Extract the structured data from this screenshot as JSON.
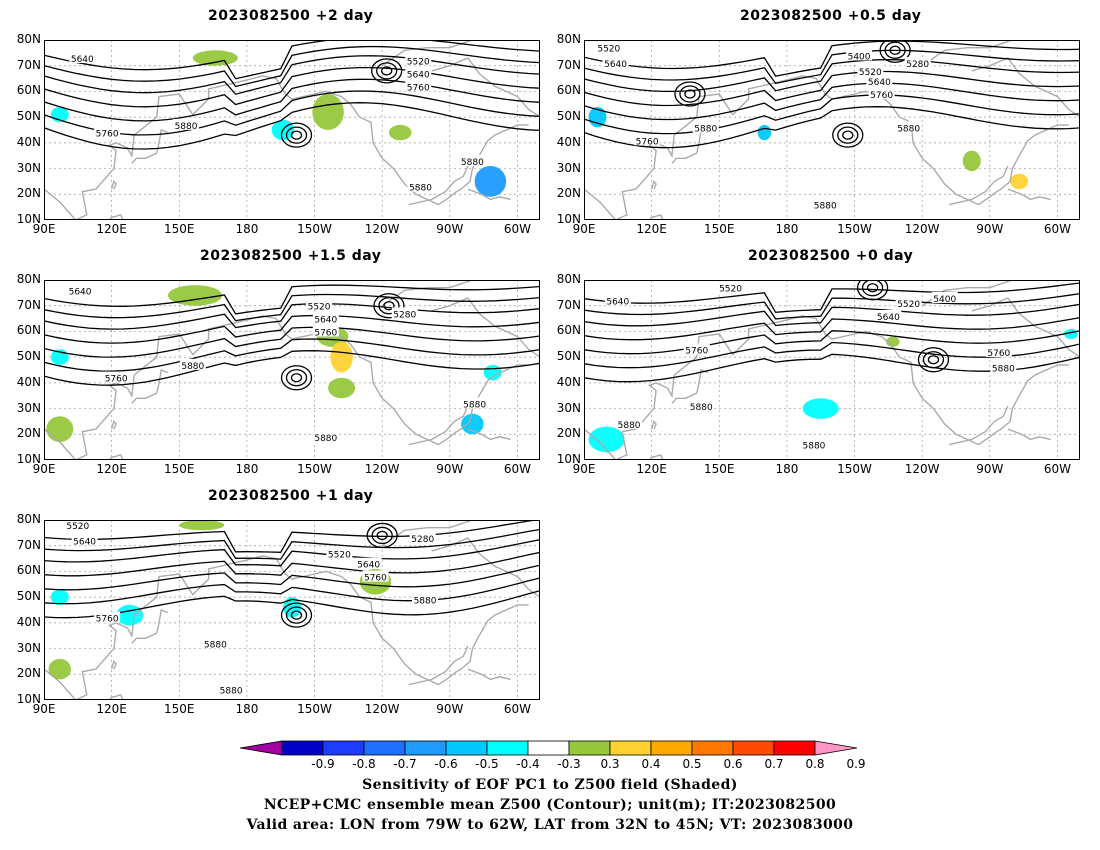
{
  "panels": [
    {
      "id": "p_plus2",
      "title": "2023082500 +2 day",
      "contour_labels": [
        {
          "text": "5640",
          "lon": 107,
          "lat": 73
        },
        {
          "text": "5520",
          "lon": 256,
          "lat": 72
        },
        {
          "text": "5640",
          "lon": 256,
          "lat": 67
        },
        {
          "text": "5760",
          "lon": 256,
          "lat": 62
        },
        {
          "text": "5760",
          "lon": 118,
          "lat": 44
        },
        {
          "text": "5880",
          "lon": 153,
          "lat": 47
        },
        {
          "text": "5880",
          "lon": 280,
          "lat": 33
        },
        {
          "text": "5880",
          "lon": 257,
          "lat": 23
        }
      ]
    },
    {
      "id": "p_plus05",
      "title": "2023082500 +0.5 day",
      "contour_labels": [
        {
          "text": "5520",
          "lon": 101,
          "lat": 77
        },
        {
          "text": "5640",
          "lon": 104,
          "lat": 71
        },
        {
          "text": "5400",
          "lon": 212,
          "lat": 74
        },
        {
          "text": "5280",
          "lon": 238,
          "lat": 71
        },
        {
          "text": "5520",
          "lon": 217,
          "lat": 68
        },
        {
          "text": "5640",
          "lon": 221,
          "lat": 64
        },
        {
          "text": "5760",
          "lon": 222,
          "lat": 59
        },
        {
          "text": "5760",
          "lon": 118,
          "lat": 41
        },
        {
          "text": "5880",
          "lon": 144,
          "lat": 46
        },
        {
          "text": "5880",
          "lon": 234,
          "lat": 46
        },
        {
          "text": "5880",
          "lon": 197,
          "lat": 16
        }
      ]
    },
    {
      "id": "p_plus15",
      "title": "2023082500 +1.5 day",
      "contour_labels": [
        {
          "text": "5640",
          "lon": 106,
          "lat": 76
        },
        {
          "text": "5520",
          "lon": 212,
          "lat": 70
        },
        {
          "text": "5280",
          "lon": 250,
          "lat": 67
        },
        {
          "text": "5640",
          "lon": 215,
          "lat": 65
        },
        {
          "text": "5760",
          "lon": 215,
          "lat": 60
        },
        {
          "text": "5760",
          "lon": 122,
          "lat": 42
        },
        {
          "text": "5880",
          "lon": 156,
          "lat": 47
        },
        {
          "text": "5880",
          "lon": 281,
          "lat": 32
        },
        {
          "text": "5880",
          "lon": 215,
          "lat": 19
        }
      ]
    },
    {
      "id": "p_plus0",
      "title": "2023082500 +0 day",
      "contour_labels": [
        {
          "text": "5520",
          "lon": 155,
          "lat": 77
        },
        {
          "text": "5640",
          "lon": 105,
          "lat": 72
        },
        {
          "text": "5520",
          "lon": 234,
          "lat": 71
        },
        {
          "text": "5400",
          "lon": 250,
          "lat": 73
        },
        {
          "text": "5640",
          "lon": 225,
          "lat": 66
        },
        {
          "text": "5760",
          "lon": 140,
          "lat": 53
        },
        {
          "text": "5760",
          "lon": 274,
          "lat": 52
        },
        {
          "text": "5880",
          "lon": 276,
          "lat": 46
        },
        {
          "text": "5880",
          "lon": 142,
          "lat": 31
        },
        {
          "text": "5880",
          "lon": 110,
          "lat": 24
        },
        {
          "text": "5880",
          "lon": 192,
          "lat": 16
        }
      ]
    },
    {
      "id": "p_plus1",
      "title": "2023082500 +1 day",
      "contour_labels": [
        {
          "text": "5520",
          "lon": 105,
          "lat": 78
        },
        {
          "text": "5640",
          "lon": 108,
          "lat": 72
        },
        {
          "text": "5520",
          "lon": 221,
          "lat": 67
        },
        {
          "text": "5640",
          "lon": 234,
          "lat": 63
        },
        {
          "text": "5280",
          "lon": 258,
          "lat": 73
        },
        {
          "text": "5760",
          "lon": 237,
          "lat": 58
        },
        {
          "text": "5880",
          "lon": 259,
          "lat": 49
        },
        {
          "text": "5760",
          "lon": 118,
          "lat": 42
        },
        {
          "text": "5880",
          "lon": 166,
          "lat": 32
        },
        {
          "text": "5880",
          "lon": 173,
          "lat": 14
        }
      ]
    }
  ],
  "axes": {
    "lat_labels": [
      "80N",
      "70N",
      "60N",
      "50N",
      "40N",
      "30N",
      "20N",
      "10N"
    ],
    "lon_labels": [
      "90E",
      "120E",
      "150E",
      "180",
      "150W",
      "120W",
      "90W",
      "60W"
    ]
  },
  "colorbar": {
    "colors": [
      "#a000a0",
      "#0000c8",
      "#1e3cff",
      "#1e6eff",
      "#1e9bff",
      "#00c8ff",
      "#00ffff",
      "#ffffff",
      "#96c83c",
      "#ffd232",
      "#ffaa00",
      "#ff7800",
      "#ff4b00",
      "#ff0000",
      "#ff96c8"
    ],
    "labels": [
      "-0.9",
      "-0.8",
      "-0.7",
      "-0.6",
      "-0.5",
      "-0.4",
      "-0.3",
      "0.3",
      "0.4",
      "0.5",
      "0.6",
      "0.7",
      "0.8",
      "0.9"
    ]
  },
  "caption": {
    "line1": "Sensitivity of EOF PC1 to Z500 field (Shaded)",
    "line2": "NCEP+CMC ensemble mean Z500 (Contour); unit(m); IT:2023082500",
    "line3": "Valid area: LON from 79W to 62W, LAT from 32N to 45N; VT: 2023083000"
  }
}
